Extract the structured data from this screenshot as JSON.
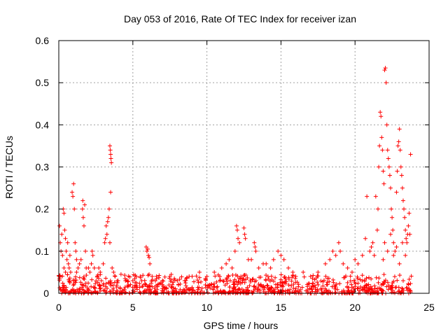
{
  "chart_data": {
    "type": "scatter",
    "title": "Day 053 of 2016, Rate Of TEC Index for receiver izan",
    "xlabel": "GPS time / hours",
    "ylabel": "ROTI / TECUs",
    "xlim": [
      0,
      25
    ],
    "ylim": [
      0,
      0.6
    ],
    "xticks": [
      0,
      5,
      10,
      15,
      20,
      25
    ],
    "yticks": [
      0,
      0.1,
      0.2,
      0.3,
      0.4,
      0.5,
      0.6
    ],
    "xtick_labels": [
      "0",
      "5",
      "10",
      "15",
      "20",
      "25"
    ],
    "ytick_labels": [
      "0",
      "0.1",
      "0.2",
      "0.3",
      "0.4",
      "0.5",
      "0.6"
    ],
    "grid": true,
    "marker": "+",
    "color": "#ff0000",
    "baseline": {
      "x_range": [
        0,
        23.8
      ],
      "y_range": [
        0.0,
        0.045
      ],
      "count": 900
    },
    "series": [
      {
        "name": "ROTI",
        "points": [
          [
            0.05,
            0.16
          ],
          [
            0.1,
            0.12
          ],
          [
            0.15,
            0.1
          ],
          [
            0.2,
            0.14
          ],
          [
            0.25,
            0.09
          ],
          [
            0.3,
            0.2
          ],
          [
            0.35,
            0.19
          ],
          [
            0.4,
            0.15
          ],
          [
            0.45,
            0.13
          ],
          [
            0.5,
            0.1
          ],
          [
            0.55,
            0.08
          ],
          [
            0.6,
            0.12
          ],
          [
            0.65,
            0.07
          ],
          [
            0.7,
            0.06
          ],
          [
            0.75,
            0.09
          ],
          [
            0.8,
            0.05
          ],
          [
            0.9,
            0.24
          ],
          [
            0.95,
            0.23
          ],
          [
            1.0,
            0.26
          ],
          [
            1.05,
            0.2
          ],
          [
            1.1,
            0.12
          ],
          [
            1.15,
            0.1
          ],
          [
            1.2,
            0.08
          ],
          [
            1.3,
            0.06
          ],
          [
            1.4,
            0.07
          ],
          [
            1.5,
            0.08
          ],
          [
            1.6,
            0.2
          ],
          [
            1.62,
            0.22
          ],
          [
            1.65,
            0.18
          ],
          [
            1.7,
            0.16
          ],
          [
            1.75,
            0.21
          ],
          [
            1.8,
            0.1
          ],
          [
            2.0,
            0.06
          ],
          [
            2.1,
            0.05
          ],
          [
            2.2,
            0.07
          ],
          [
            2.25,
            0.1
          ],
          [
            2.3,
            0.09
          ],
          [
            2.4,
            0.06
          ],
          [
            2.6,
            0.04
          ],
          [
            2.8,
            0.05
          ],
          [
            3.0,
            0.07
          ],
          [
            3.1,
            0.12
          ],
          [
            3.15,
            0.13
          ],
          [
            3.2,
            0.16
          ],
          [
            3.25,
            0.14
          ],
          [
            3.3,
            0.17
          ],
          [
            3.35,
            0.18
          ],
          [
            3.4,
            0.2
          ],
          [
            3.45,
            0.35
          ],
          [
            3.48,
            0.34
          ],
          [
            3.5,
            0.33
          ],
          [
            3.52,
            0.32
          ],
          [
            3.55,
            0.31
          ],
          [
            3.5,
            0.24
          ],
          [
            3.45,
            0.12
          ],
          [
            3.6,
            0.06
          ],
          [
            3.8,
            0.04
          ],
          [
            4.0,
            0.03
          ],
          [
            4.5,
            0.03
          ],
          [
            5.0,
            0.03
          ],
          [
            5.5,
            0.04
          ],
          [
            5.9,
            0.11
          ],
          [
            5.95,
            0.1
          ],
          [
            6.0,
            0.105
          ],
          [
            6.05,
            0.09
          ],
          [
            6.1,
            0.085
          ],
          [
            6.15,
            0.07
          ],
          [
            6.3,
            0.04
          ],
          [
            7.0,
            0.03
          ],
          [
            7.5,
            0.04
          ],
          [
            8.0,
            0.03
          ],
          [
            8.5,
            0.03
          ],
          [
            9.0,
            0.04
          ],
          [
            9.5,
            0.05
          ],
          [
            10.0,
            0.04
          ],
          [
            10.5,
            0.05
          ],
          [
            11.0,
            0.06
          ],
          [
            11.3,
            0.07
          ],
          [
            11.5,
            0.08
          ],
          [
            11.7,
            0.06
          ],
          [
            11.9,
            0.1
          ],
          [
            12.0,
            0.16
          ],
          [
            12.05,
            0.15
          ],
          [
            12.1,
            0.13
          ],
          [
            12.2,
            0.12
          ],
          [
            12.5,
            0.155
          ],
          [
            12.55,
            0.14
          ],
          [
            12.6,
            0.13
          ],
          [
            12.8,
            0.08
          ],
          [
            13.0,
            0.08
          ],
          [
            13.2,
            0.12
          ],
          [
            13.25,
            0.11
          ],
          [
            13.3,
            0.1
          ],
          [
            13.5,
            0.06
          ],
          [
            13.8,
            0.07
          ],
          [
            14.0,
            0.07
          ],
          [
            14.3,
            0.06
          ],
          [
            14.5,
            0.08
          ],
          [
            14.8,
            0.1
          ],
          [
            15.0,
            0.09
          ],
          [
            15.2,
            0.08
          ],
          [
            15.5,
            0.06
          ],
          [
            15.8,
            0.05
          ],
          [
            16.0,
            0.04
          ],
          [
            16.5,
            0.05
          ],
          [
            17.0,
            0.04
          ],
          [
            17.5,
            0.05
          ],
          [
            18.0,
            0.07
          ],
          [
            18.3,
            0.08
          ],
          [
            18.5,
            0.1
          ],
          [
            18.7,
            0.09
          ],
          [
            18.9,
            0.12
          ],
          [
            19.0,
            0.1
          ],
          [
            19.2,
            0.07
          ],
          [
            19.5,
            0.06
          ],
          [
            19.8,
            0.05
          ],
          [
            20.0,
            0.08
          ],
          [
            20.2,
            0.07
          ],
          [
            20.5,
            0.09
          ],
          [
            20.7,
            0.13
          ],
          [
            20.8,
            0.23
          ],
          [
            21.0,
            0.1
          ],
          [
            21.2,
            0.12
          ],
          [
            21.4,
            0.23
          ],
          [
            21.5,
            0.15
          ],
          [
            21.55,
            0.2
          ],
          [
            21.6,
            0.3
          ],
          [
            21.65,
            0.35
          ],
          [
            21.7,
            0.43
          ],
          [
            21.75,
            0.42
          ],
          [
            21.8,
            0.37
          ],
          [
            21.85,
            0.34
          ],
          [
            21.9,
            0.29
          ],
          [
            21.95,
            0.26
          ],
          [
            22.0,
            0.53
          ],
          [
            22.05,
            0.535
          ],
          [
            22.1,
            0.5
          ],
          [
            22.15,
            0.4
          ],
          [
            22.2,
            0.34
          ],
          [
            22.25,
            0.32
          ],
          [
            22.3,
            0.3
          ],
          [
            22.35,
            0.28
          ],
          [
            22.4,
            0.25
          ],
          [
            22.45,
            0.2
          ],
          [
            22.5,
            0.18
          ],
          [
            22.55,
            0.15
          ],
          [
            22.6,
            0.12
          ],
          [
            22.7,
            0.1
          ],
          [
            22.8,
            0.24
          ],
          [
            22.85,
            0.29
          ],
          [
            22.9,
            0.35
          ],
          [
            22.95,
            0.36
          ],
          [
            23.0,
            0.39
          ],
          [
            23.05,
            0.34
          ],
          [
            23.1,
            0.3
          ],
          [
            23.15,
            0.28
          ],
          [
            23.2,
            0.25
          ],
          [
            23.25,
            0.22
          ],
          [
            23.3,
            0.2
          ],
          [
            23.35,
            0.18
          ],
          [
            23.4,
            0.15
          ],
          [
            23.45,
            0.13
          ],
          [
            23.5,
            0.12
          ],
          [
            23.55,
            0.14
          ],
          [
            23.6,
            0.16
          ],
          [
            23.65,
            0.19
          ],
          [
            23.7,
            0.14
          ],
          [
            23.75,
            0.33
          ],
          [
            21.9,
            0.08
          ],
          [
            22.0,
            0.12
          ],
          [
            22.2,
            0.1
          ],
          [
            22.4,
            0.14
          ],
          [
            22.6,
            0.09
          ],
          [
            22.8,
            0.11
          ],
          [
            23.0,
            0.07
          ],
          [
            23.2,
            0.12
          ],
          [
            23.4,
            0.09
          ],
          [
            21.3,
            0.09
          ],
          [
            21.1,
            0.11
          ],
          [
            0.35,
            0.06
          ],
          [
            0.45,
            0.05
          ],
          [
            1.2,
            0.05
          ],
          [
            1.85,
            0.06
          ],
          [
            2.7,
            0.06
          ],
          [
            3.7,
            0.05
          ],
          [
            4.2,
            0.045
          ],
          [
            6.6,
            0.04
          ],
          [
            7.8,
            0.035
          ],
          [
            8.8,
            0.04
          ]
        ]
      }
    ]
  }
}
